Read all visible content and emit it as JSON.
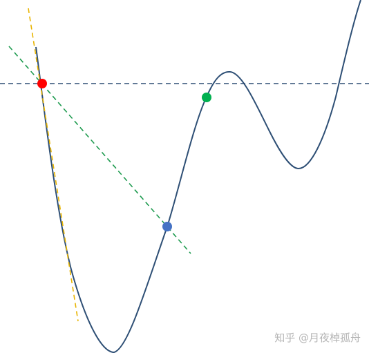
{
  "diagram": {
    "colors": {
      "curve": "#2e4f75",
      "horizontal_line": "#2e4f75",
      "tangent_line": "#e8b400",
      "secant_line": "#1e9b4f",
      "point_red": "#ff0000",
      "point_blue": "#4472c4",
      "point_green": "#00b050",
      "watermark": "#b5b5b5"
    }
  },
  "watermark": {
    "text": "知乎 @月夜棹孤舟"
  }
}
